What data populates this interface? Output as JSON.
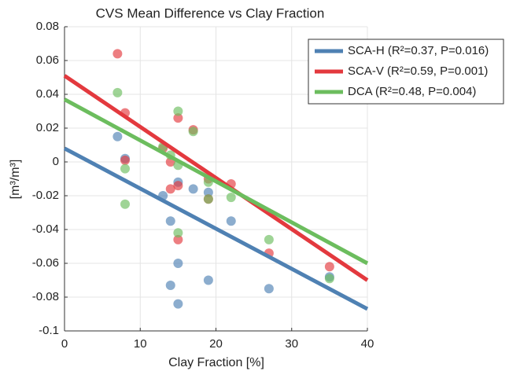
{
  "chart_data": {
    "type": "scatter",
    "title": "CVS Mean Difference vs Clay Fraction",
    "xlabel": "Clay Fraction [%]",
    "ylabel": "[m³/m³]",
    "xlim": [
      0,
      40
    ],
    "xticks": [
      0,
      10,
      20,
      30,
      40
    ],
    "ylim": [
      -0.1,
      0.08
    ],
    "yticks": [
      0.08,
      0.06,
      0.04,
      0.02,
      0,
      -0.02,
      -0.04,
      -0.06,
      -0.08,
      -0.1
    ],
    "grid": true,
    "legend": "upper right",
    "series": [
      {
        "name": "SCA-H (R²=0.37, P=0.016)",
        "color": "#4f81b3",
        "x": [
          7,
          8,
          13,
          14,
          14,
          15,
          15,
          15,
          17,
          19,
          19,
          22,
          27,
          35
        ],
        "values": [
          0.015,
          0.002,
          -0.02,
          -0.035,
          -0.073,
          -0.012,
          -0.06,
          -0.084,
          -0.016,
          -0.018,
          -0.07,
          -0.035,
          -0.075,
          -0.068
        ],
        "fit": {
          "x": [
            0,
            40
          ],
          "values": [
            0.008,
            -0.087
          ]
        }
      },
      {
        "name": "SCA-V (R²=0.59, P=0.001)",
        "color": "#e3393e",
        "x": [
          7,
          8,
          8,
          13,
          14,
          14,
          15,
          15,
          15,
          17,
          19,
          19,
          22,
          27,
          35
        ],
        "values": [
          0.064,
          0.029,
          0.001,
          0.008,
          0.0,
          -0.016,
          0.026,
          -0.014,
          -0.046,
          0.019,
          -0.01,
          -0.022,
          -0.013,
          -0.054,
          -0.062
        ],
        "fit": {
          "x": [
            0,
            40
          ],
          "values": [
            0.051,
            -0.07
          ]
        }
      },
      {
        "name": "DCA (R²=0.48, P=0.004)",
        "color": "#6cbd5e",
        "x": [
          7,
          8,
          8,
          13,
          14,
          15,
          15,
          15,
          17,
          19,
          19,
          22,
          27,
          35
        ],
        "values": [
          0.041,
          -0.004,
          -0.025,
          0.009,
          0.004,
          0.03,
          -0.002,
          -0.042,
          0.018,
          -0.012,
          -0.022,
          -0.021,
          -0.046,
          -0.069
        ],
        "fit": {
          "x": [
            0,
            40
          ],
          "values": [
            0.037,
            -0.06
          ]
        }
      }
    ]
  }
}
